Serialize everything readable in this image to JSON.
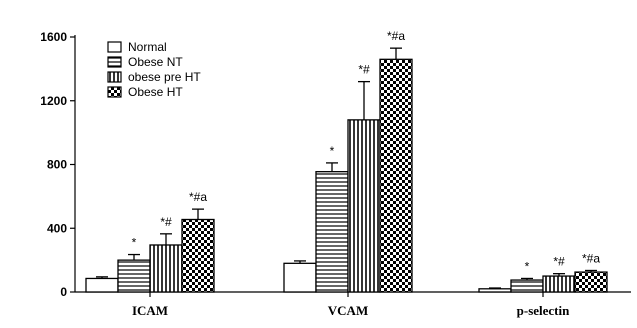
{
  "chart_data": {
    "type": "bar",
    "categories": [
      "ICAM",
      "VCAM",
      "p-selectin"
    ],
    "ylim": [
      0,
      1600
    ],
    "yticks": [
      0,
      400,
      800,
      1200,
      1600
    ],
    "grid": false,
    "legend_position": "top-left",
    "series": [
      {
        "name": "Normal",
        "pattern": "plain",
        "values": [
          85,
          180,
          20
        ],
        "errors": [
          10,
          15,
          5
        ]
      },
      {
        "name": "Obese  NT",
        "pattern": "horizontal-lines",
        "values": [
          200,
          755,
          75
        ],
        "errors": [
          35,
          55,
          10
        ]
      },
      {
        "name": "obese pre  HT",
        "pattern": "vertical-lines",
        "values": [
          295,
          1080,
          100
        ],
        "errors": [
          70,
          240,
          15
        ]
      },
      {
        "name": "Obese  HT",
        "pattern": "checkered",
        "values": [
          455,
          1460,
          125
        ],
        "errors": [
          65,
          70,
          10
        ]
      }
    ],
    "annotations": [
      [
        "",
        "*",
        "*#",
        "*#a"
      ],
      [
        "",
        "*",
        "*#",
        "*#a"
      ],
      [
        "",
        "*",
        "*#",
        "*#a"
      ]
    ]
  }
}
